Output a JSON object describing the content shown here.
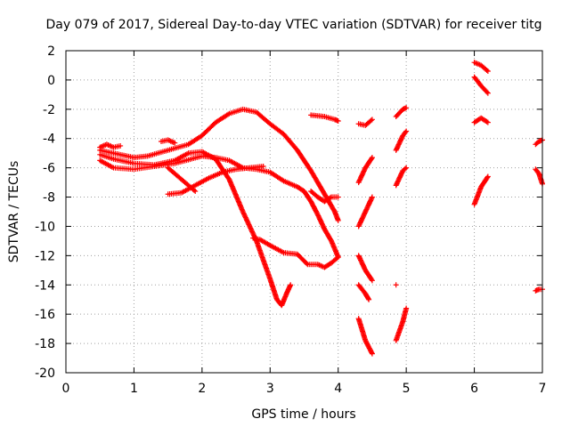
{
  "chart_data": {
    "type": "scatter",
    "title": "Day 079 of 2017, Sidereal Day-to-day VTEC variation (SDTVAR) for receiver titg",
    "xlabel": "GPS time / hours",
    "ylabel": "SDTVAR / TECUs",
    "xlim": [
      0,
      7
    ],
    "ylim": [
      -20,
      2
    ],
    "xticks": [
      "0",
      "1",
      "2",
      "3",
      "4",
      "5",
      "6",
      "7"
    ],
    "yticks": [
      "2",
      "0",
      "-2",
      "-4",
      "-6",
      "-8",
      "-10",
      "-12",
      "-14",
      "-16",
      "-18",
      "-20"
    ],
    "grid": true,
    "marker": "plus",
    "color": "#ff0000",
    "series": [
      {
        "points": [
          [
            0.5,
            -4.8
          ],
          [
            0.7,
            -5.0
          ],
          [
            1.0,
            -5.3
          ],
          [
            1.2,
            -5.2
          ],
          [
            1.5,
            -4.8
          ],
          [
            1.8,
            -4.4
          ],
          [
            2.0,
            -3.8
          ],
          [
            2.2,
            -2.9
          ],
          [
            2.4,
            -2.3
          ],
          [
            2.6,
            -2.0
          ],
          [
            2.8,
            -2.2
          ],
          [
            3.0,
            -3.0
          ],
          [
            3.2,
            -3.7
          ],
          [
            3.4,
            -4.8
          ],
          [
            3.6,
            -6.2
          ],
          [
            3.8,
            -7.8
          ],
          [
            3.95,
            -9.0
          ],
          [
            4.0,
            -9.6
          ]
        ]
      },
      {
        "points": [
          [
            0.5,
            -5.1
          ],
          [
            0.7,
            -5.4
          ],
          [
            1.0,
            -5.7
          ],
          [
            1.3,
            -5.8
          ],
          [
            1.6,
            -5.5
          ],
          [
            1.8,
            -5.0
          ],
          [
            2.0,
            -4.9
          ],
          [
            2.2,
            -5.4
          ],
          [
            2.4,
            -6.8
          ],
          [
            2.6,
            -9.0
          ],
          [
            2.8,
            -11.0
          ],
          [
            3.0,
            -13.6
          ],
          [
            3.1,
            -15.0
          ],
          [
            3.17,
            -15.4
          ],
          [
            3.25,
            -14.5
          ],
          [
            3.3,
            -14.0
          ]
        ]
      },
      {
        "points": [
          [
            0.5,
            -5.5
          ],
          [
            0.7,
            -6.0
          ],
          [
            1.0,
            -6.1
          ],
          [
            1.3,
            -5.9
          ],
          [
            1.6,
            -5.7
          ],
          [
            2.0,
            -5.2
          ],
          [
            2.2,
            -5.3
          ],
          [
            2.4,
            -5.5
          ],
          [
            2.6,
            -6.0
          ],
          [
            2.8,
            -6.1
          ],
          [
            3.0,
            -6.3
          ],
          [
            3.2,
            -6.9
          ],
          [
            3.4,
            -7.3
          ],
          [
            3.5,
            -7.6
          ],
          [
            3.6,
            -8.3
          ],
          [
            3.7,
            -9.2
          ],
          [
            3.8,
            -10.2
          ],
          [
            3.9,
            -11.0
          ],
          [
            4.0,
            -12.1
          ]
        ]
      },
      {
        "points": [
          [
            1.5,
            -7.8
          ],
          [
            1.7,
            -7.7
          ],
          [
            1.9,
            -7.2
          ],
          [
            2.1,
            -6.7
          ],
          [
            2.3,
            -6.3
          ],
          [
            2.5,
            -6.1
          ],
          [
            2.7,
            -6.0
          ],
          [
            2.9,
            -5.9
          ]
        ]
      },
      {
        "points": [
          [
            2.75,
            -10.8
          ],
          [
            2.85,
            -10.9
          ],
          [
            3.0,
            -11.3
          ],
          [
            3.2,
            -11.8
          ],
          [
            3.4,
            -11.9
          ],
          [
            3.55,
            -12.6
          ],
          [
            3.7,
            -12.6
          ],
          [
            3.8,
            -12.8
          ],
          [
            3.9,
            -12.5
          ],
          [
            4.0,
            -12.1
          ]
        ]
      },
      {
        "points": [
          [
            0.5,
            -4.6
          ],
          [
            0.6,
            -4.4
          ],
          [
            0.7,
            -4.6
          ],
          [
            0.8,
            -4.5
          ]
        ]
      },
      {
        "points": [
          [
            1.4,
            -4.2
          ],
          [
            1.5,
            -4.1
          ],
          [
            1.6,
            -4.3
          ]
        ]
      },
      {
        "points": [
          [
            1.5,
            -6.0
          ],
          [
            1.7,
            -6.8
          ],
          [
            1.9,
            -7.6
          ]
        ]
      },
      {
        "points": [
          [
            3.6,
            -7.6
          ],
          [
            3.7,
            -8.0
          ],
          [
            3.8,
            -8.3
          ],
          [
            3.9,
            -8.0
          ],
          [
            4.0,
            -8.0
          ]
        ]
      },
      {
        "points": [
          [
            3.6,
            -2.4
          ],
          [
            3.8,
            -2.5
          ],
          [
            3.95,
            -2.7
          ],
          [
            4.0,
            -2.8
          ]
        ]
      },
      {
        "points": [
          [
            4.3,
            -3.0
          ],
          [
            4.4,
            -3.1
          ],
          [
            4.5,
            -2.7
          ]
        ]
      },
      {
        "points": [
          [
            4.3,
            -7.0
          ],
          [
            4.4,
            -6.0
          ],
          [
            4.5,
            -5.3
          ]
        ]
      },
      {
        "points": [
          [
            4.3,
            -10.0
          ],
          [
            4.4,
            -9.0
          ],
          [
            4.5,
            -8.0
          ]
        ]
      },
      {
        "points": [
          [
            4.3,
            -12.0
          ],
          [
            4.4,
            -13.0
          ],
          [
            4.5,
            -13.7
          ]
        ]
      },
      {
        "points": [
          [
            4.3,
            -14.0
          ],
          [
            4.4,
            -14.6
          ],
          [
            4.45,
            -15.0
          ]
        ]
      },
      {
        "points": [
          [
            4.3,
            -16.3
          ],
          [
            4.4,
            -17.8
          ],
          [
            4.5,
            -18.7
          ]
        ]
      },
      {
        "points": [
          [
            4.85,
            -2.5
          ],
          [
            4.95,
            -2.0
          ],
          [
            5.0,
            -1.9
          ]
        ]
      },
      {
        "points": [
          [
            4.85,
            -4.8
          ],
          [
            4.95,
            -3.8
          ],
          [
            5.0,
            -3.5
          ]
        ]
      },
      {
        "points": [
          [
            4.85,
            -7.2
          ],
          [
            4.95,
            -6.2
          ],
          [
            5.0,
            -6.0
          ]
        ]
      },
      {
        "points": [
          [
            4.85,
            -14.0
          ]
        ]
      },
      {
        "points": [
          [
            4.85,
            -17.8
          ],
          [
            4.95,
            -16.5
          ],
          [
            5.0,
            -15.6
          ]
        ]
      },
      {
        "points": [
          [
            6.0,
            1.2
          ],
          [
            6.1,
            1.0
          ],
          [
            6.2,
            0.6
          ]
        ]
      },
      {
        "points": [
          [
            6.0,
            0.2
          ],
          [
            6.1,
            -0.4
          ],
          [
            6.2,
            -0.9
          ]
        ]
      },
      {
        "points": [
          [
            6.0,
            -2.9
          ],
          [
            6.1,
            -2.6
          ],
          [
            6.2,
            -2.9
          ]
        ]
      },
      {
        "points": [
          [
            6.0,
            -8.5
          ],
          [
            6.1,
            -7.3
          ],
          [
            6.2,
            -6.6
          ]
        ]
      },
      {
        "points": [
          [
            6.9,
            -4.4
          ],
          [
            6.95,
            -4.2
          ],
          [
            7.0,
            -4.1
          ]
        ]
      },
      {
        "points": [
          [
            6.9,
            -6.1
          ],
          [
            6.95,
            -6.4
          ],
          [
            7.0,
            -7.1
          ]
        ]
      },
      {
        "points": [
          [
            6.9,
            -14.4
          ],
          [
            6.95,
            -14.3
          ],
          [
            7.0,
            -14.3
          ]
        ]
      }
    ]
  }
}
